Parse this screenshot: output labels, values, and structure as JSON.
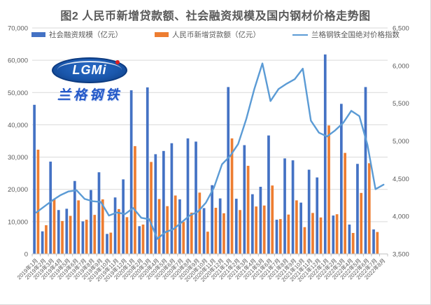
{
  "title": "图2 人民币新增贷款额、社会融资规模及国内钢材价格走势图",
  "logo": {
    "lgmi": "LGMi",
    "name": "兰格钢铁"
  },
  "legend": [
    {
      "label": "社会融资规模（亿元）",
      "color": "#4472C4",
      "type": "bar"
    },
    {
      "label": "人民币新增贷款额（亿元）",
      "color": "#ED7D31",
      "type": "bar"
    },
    {
      "label": "兰格钢铁全国绝对价格指数",
      "color": "#5B9BD5",
      "type": "line"
    }
  ],
  "chart_data": {
    "type": "bar",
    "title": "图2 人民币新增贷款额、社会融资规模及国内钢材价格走势图",
    "grid": true,
    "legend_position": "top",
    "categories": [
      "2019年1月",
      "2019年2月",
      "2019年3月",
      "2019年4月",
      "2019年5月",
      "2019年6月",
      "2019年7月",
      "2019年8月",
      "2019年9月",
      "2019年10月",
      "2019年11月",
      "2019年12月",
      "2020年1月",
      "2020年2月",
      "2020年3月",
      "2020年4月",
      "2020年5月",
      "2020年6月",
      "2020年7月",
      "2020年8月",
      "2020年9月",
      "2020年10月",
      "2020年11月",
      "2020年12月",
      "2021年1月",
      "2021年2月",
      "2021年3月",
      "2021年4月",
      "2021年5月",
      "2021年6月",
      "2021年7月",
      "2021年8月",
      "2021年9月",
      "2021年10月",
      "2021年11月",
      "2021年12月",
      "2022年1月",
      "2022年2月",
      "2022年3月",
      "2022年4月",
      "2022年5月",
      "2022年6月",
      "2022年7月",
      "2022年8月"
    ],
    "left_axis": {
      "min": 0,
      "max": 70000,
      "step": 10000,
      "ticks": [
        "0",
        "10,000",
        "20,000",
        "30,000",
        "40,000",
        "50,000",
        "60,000",
        "70,000"
      ]
    },
    "right_axis": {
      "min": 3500,
      "max": 6500,
      "step": 500,
      "ticks": [
        "3,500",
        "4,000",
        "4,500",
        "5,000",
        "5,500",
        "6,000",
        "6,500"
      ]
    },
    "series": [
      {
        "name": "社会融资规模",
        "unit": "亿元",
        "type": "bar",
        "axis": "left",
        "color": "#4472C4",
        "values": [
          46200,
          7000,
          28600,
          13600,
          14000,
          22600,
          10100,
          19800,
          25300,
          6200,
          17500,
          23100,
          50700,
          8600,
          51600,
          30900,
          31900,
          34300,
          16900,
          35800,
          34800,
          14200,
          21300,
          17200,
          51700,
          17100,
          33700,
          18500,
          20800,
          36700,
          10600,
          29600,
          29000,
          15900,
          26100,
          23700,
          61800,
          11900,
          46500,
          9100,
          27900,
          51700,
          7600,
          null
        ]
      },
      {
        "name": "人民币新增贷款额",
        "unit": "亿元",
        "type": "bar",
        "axis": "left",
        "color": "#ED7D31",
        "values": [
          32300,
          8900,
          16900,
          10200,
          11800,
          16600,
          10600,
          12100,
          16900,
          6600,
          13900,
          11400,
          33400,
          9100,
          28500,
          17000,
          14800,
          18100,
          9900,
          12800,
          19000,
          6900,
          14300,
          12600,
          35800,
          13600,
          27300,
          14700,
          15000,
          21200,
          10800,
          12200,
          16600,
          8300,
          12700,
          11300,
          39800,
          12300,
          31300,
          6500,
          18900,
          28100,
          6800,
          null
        ]
      },
      {
        "name": "兰格钢铁全国绝对价格指数",
        "type": "line",
        "axis": "right",
        "color": "#5B9BD5",
        "values": [
          4050,
          4130,
          4210,
          4280,
          4330,
          4345,
          4230,
          4200,
          4190,
          4010,
          4050,
          4030,
          4110,
          3980,
          3960,
          3700,
          3790,
          3830,
          3920,
          4010,
          4060,
          4180,
          4380,
          4690,
          4800,
          4960,
          5290,
          5690,
          6030,
          5530,
          5690,
          5760,
          5820,
          5960,
          5270,
          5110,
          5060,
          5140,
          5240,
          5400,
          5330,
          4950,
          4360,
          4420
        ]
      }
    ]
  }
}
